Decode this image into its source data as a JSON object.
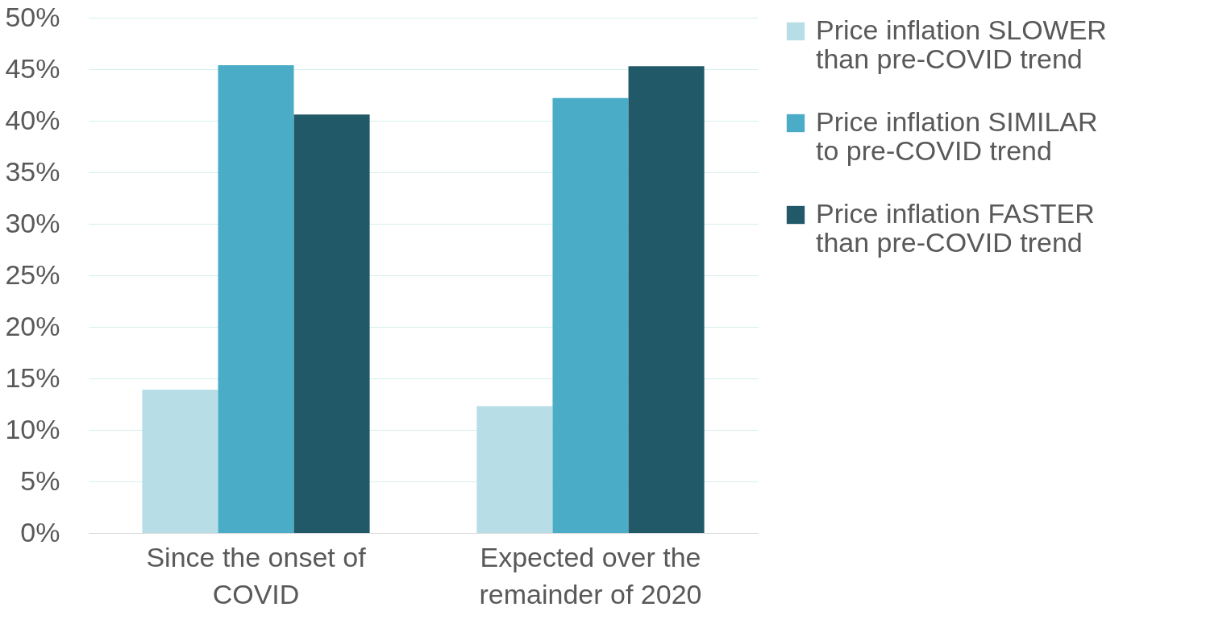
{
  "chart_data": {
    "type": "bar",
    "categories": [
      "Since the onset of COVID",
      "Expected over the remainder of 2020"
    ],
    "series": [
      {
        "name": "Price inflation SLOWER than pre-COVID trend",
        "color": "#b7dde6",
        "values": [
          13.9,
          12.3
        ]
      },
      {
        "name": "Price inflation SIMILAR to pre-COVID trend",
        "color": "#4aacc6",
        "values": [
          45.4,
          42.2
        ]
      },
      {
        "name": "Price inflation FASTER than pre-COVID trend",
        "color": "#215968",
        "values": [
          40.6,
          45.3
        ]
      }
    ],
    "ylim": [
      0,
      50
    ],
    "yticks": [
      {
        "value": 0,
        "label": "0%"
      },
      {
        "value": 5,
        "label": "5%"
      },
      {
        "value": 10,
        "label": "10%"
      },
      {
        "value": 15,
        "label": "15%"
      },
      {
        "value": 20,
        "label": "20%"
      },
      {
        "value": 25,
        "label": "25%"
      },
      {
        "value": 30,
        "label": "30%"
      },
      {
        "value": 35,
        "label": "35%"
      },
      {
        "value": 40,
        "label": "40%"
      },
      {
        "value": 45,
        "label": "45%"
      },
      {
        "value": 50,
        "label": "50%"
      }
    ],
    "grid": "y",
    "legend": "right"
  }
}
